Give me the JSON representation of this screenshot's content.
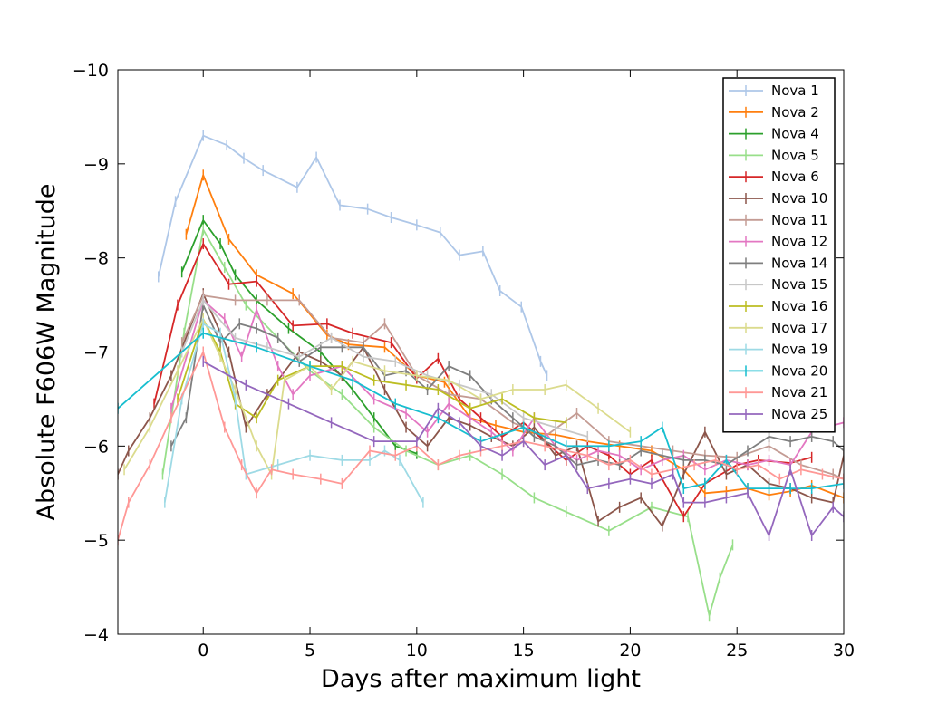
{
  "chart_data": {
    "type": "line",
    "title": "",
    "xlabel": "Days after maximum light",
    "ylabel": "Absolute F606W Magnitude",
    "xlim": [
      -4,
      30
    ],
    "ylim": [
      -10,
      -4
    ],
    "y_inverted": true,
    "grid": false,
    "legend_position": "top-right",
    "x_ticks": [
      0,
      5,
      10,
      15,
      20,
      25,
      30
    ],
    "x_tick_labels": [
      "0",
      "5",
      "10",
      "15",
      "20",
      "25",
      "30"
    ],
    "y_ticks": [
      -10,
      -9,
      -8,
      -7,
      -6,
      -5,
      -4
    ],
    "y_tick_labels": [
      "−10",
      "−9",
      "−8",
      "−7",
      "−6",
      "−5",
      "−4"
    ],
    "series": [
      {
        "name": "Nova 1",
        "color": "#aec7e8",
        "x": [
          -2.1,
          -1.3,
          0,
          1.1,
          1.9,
          2.8,
          4.4,
          5.3,
          6.4,
          7.7,
          8.8,
          10,
          11.1,
          12,
          13.1,
          13.9,
          14.9,
          15.8,
          16.1
        ],
        "y": [
          -7.8,
          -8.6,
          -9.3,
          -9.2,
          -9.06,
          -8.93,
          -8.75,
          -9.07,
          -8.56,
          -8.52,
          -8.43,
          -8.35,
          -8.27,
          -8.03,
          -8.07,
          -7.65,
          -7.48,
          -6.9,
          -6.75
        ]
      },
      {
        "name": "Nova 2",
        "color": "#ff7f0e",
        "x": [
          -0.8,
          0,
          1.2,
          2.5,
          4.2,
          5.8,
          6.8,
          8.5,
          10,
          11.3,
          12.5,
          13.7,
          15,
          16.5,
          18,
          19.5,
          21,
          22.5,
          23.5,
          24.5,
          25.5,
          26.5,
          27.5,
          28.5,
          30
        ],
        "y": [
          -8.25,
          -8.88,
          -8.2,
          -7.82,
          -7.62,
          -7.18,
          -7.08,
          -7.05,
          -6.75,
          -6.68,
          -6.3,
          -6.22,
          -6.15,
          -6.12,
          -6.05,
          -6.0,
          -5.95,
          -5.75,
          -5.5,
          -5.52,
          -5.55,
          -5.48,
          -5.52,
          -5.58,
          -5.45
        ]
      },
      {
        "name": "Nova 4",
        "color": "#2ca02c",
        "x": [
          -1,
          0,
          0.8,
          1.5,
          2.5,
          4,
          5.5,
          7,
          8,
          9,
          10
        ],
        "y": [
          -7.85,
          -8.4,
          -8.15,
          -7.82,
          -7.55,
          -7.25,
          -7.0,
          -6.6,
          -6.3,
          -6.0,
          -5.92
        ]
      },
      {
        "name": "Nova 5",
        "color": "#98df8a",
        "x": [
          -1.9,
          -0.9,
          0,
          1,
          2,
          3.5,
          5,
          6.5,
          8,
          9.5,
          11,
          12.5,
          14,
          15.5,
          17,
          19,
          21,
          22.7,
          23.7,
          24.2,
          24.8
        ],
        "y": [
          -5.7,
          -7.2,
          -8.3,
          -7.9,
          -7.5,
          -7.15,
          -6.8,
          -6.55,
          -6.2,
          -5.95,
          -5.8,
          -5.9,
          -5.7,
          -5.45,
          -5.3,
          -5.1,
          -5.35,
          -5.25,
          -4.2,
          -4.6,
          -4.95
        ]
      },
      {
        "name": "Nova 6",
        "color": "#d62728",
        "x": [
          -2.3,
          -1.2,
          0,
          1.2,
          2.5,
          4.2,
          5.8,
          7,
          8.8,
          10,
          11,
          12,
          13,
          14,
          15,
          16,
          17,
          18,
          19,
          20,
          21,
          22.5,
          23.5,
          25,
          26,
          27.5,
          28.5
        ],
        "y": [
          -6.45,
          -7.5,
          -8.15,
          -7.72,
          -7.75,
          -7.28,
          -7.3,
          -7.2,
          -7.1,
          -6.72,
          -6.93,
          -6.5,
          -6.3,
          -6.1,
          -6.25,
          -6.05,
          -5.85,
          -6.0,
          -5.9,
          -5.7,
          -5.85,
          -5.25,
          -5.6,
          -5.8,
          -5.85,
          -5.82,
          -5.88
        ]
      },
      {
        "name": "Nova 10",
        "color": "#8c564b",
        "x": [
          -4,
          -3.5,
          -2.5,
          -1.5,
          0,
          1.2,
          2,
          3,
          4.5,
          5.5,
          6.5,
          7.5,
          8.5,
          9.5,
          10.5,
          11.5,
          12.5,
          13.5,
          14.5,
          15.5,
          16.5,
          17.5,
          18.5,
          19.5,
          20.5,
          21.5,
          22.5,
          23.5,
          24.5,
          25.5,
          26.5,
          27.5,
          28.5,
          29.5,
          30
        ],
        "y": [
          -5.7,
          -5.95,
          -6.3,
          -6.75,
          -7.62,
          -7.0,
          -6.2,
          -6.55,
          -7.0,
          -6.9,
          -6.75,
          -7.05,
          -6.6,
          -6.2,
          -6.0,
          -6.3,
          -6.22,
          -6.1,
          -6.0,
          -6.2,
          -5.9,
          -6.0,
          -5.2,
          -5.35,
          -5.45,
          -5.15,
          -5.7,
          -6.15,
          -5.7,
          -5.8,
          -5.6,
          -5.55,
          -5.45,
          -5.4,
          -5.9
        ]
      },
      {
        "name": "Nova 11",
        "color": "#c49c94",
        "x": [
          -1,
          0,
          1.5,
          3,
          4.5,
          6,
          7.5,
          8.5,
          10,
          11.5,
          13,
          14.5,
          16,
          17.5,
          19,
          20.5,
          22,
          23.5,
          25,
          26.5,
          28,
          29.5,
          30
        ],
        "y": [
          -7.1,
          -7.6,
          -7.55,
          -7.55,
          -7.55,
          -7.15,
          -7.1,
          -7.3,
          -6.75,
          -6.55,
          -6.5,
          -6.25,
          -6.1,
          -6.35,
          -6.05,
          -6.0,
          -5.95,
          -5.9,
          -5.88,
          -6.0,
          -5.8,
          -5.7,
          -5.65
        ]
      },
      {
        "name": "Nova 12",
        "color": "#e377c2",
        "x": [
          -1.5,
          0,
          1,
          1.8,
          2.5,
          3.5,
          4.2,
          5,
          6.5,
          8,
          9.5,
          10.5,
          11.5,
          12.5,
          13.5,
          14.5,
          15.5,
          16.5,
          17.5,
          18.5,
          19.5,
          20.5,
          21.5,
          22.5,
          23.5,
          24.5,
          25.5,
          26.5,
          27.5,
          28.5,
          29.5,
          30
        ],
        "y": [
          -6.4,
          -7.55,
          -7.35,
          -6.95,
          -7.45,
          -6.85,
          -6.55,
          -6.75,
          -6.85,
          -6.5,
          -6.35,
          -6.15,
          -6.45,
          -6.3,
          -6.15,
          -5.95,
          -6.3,
          -6.0,
          -5.85,
          -5.95,
          -5.9,
          -5.75,
          -5.85,
          -5.9,
          -5.75,
          -5.85,
          -5.8,
          -5.85,
          -5.8,
          -6.15,
          -6.22,
          -6.25
        ]
      },
      {
        "name": "Nova 14",
        "color": "#7f7f7f",
        "x": [
          -1.5,
          -0.8,
          0,
          0.8,
          1.7,
          2.5,
          3.5,
          4.5,
          5.5,
          6.5,
          7.5,
          8.5,
          9.5,
          10.5,
          11.5,
          12.5,
          13.5,
          14.5,
          15.5,
          16.5,
          17.5,
          18.5,
          19.5,
          20.5,
          21.5,
          22.5,
          23.5,
          24.5,
          25.5,
          26.5,
          27.5,
          28.5,
          29.5,
          30
        ],
        "y": [
          -6.0,
          -6.3,
          -7.5,
          -7.1,
          -7.3,
          -7.25,
          -7.15,
          -6.9,
          -7.05,
          -7.05,
          -7.05,
          -6.75,
          -6.8,
          -6.6,
          -6.85,
          -6.75,
          -6.5,
          -6.3,
          -6.1,
          -6.0,
          -5.8,
          -5.85,
          -5.8,
          -5.95,
          -5.9,
          -5.85,
          -5.85,
          -5.8,
          -5.95,
          -6.1,
          -6.05,
          -6.1,
          -6.05,
          -5.95
        ]
      },
      {
        "name": "Nova 15",
        "color": "#c7c7c7",
        "x": [
          -1,
          0,
          1.5,
          3,
          4.5,
          6,
          7.5,
          9,
          10.5,
          12,
          13.5,
          15,
          16.5,
          18
        ],
        "y": [
          -7.0,
          -7.55,
          -7.15,
          -7.05,
          -6.95,
          -7.15,
          -6.95,
          -6.9,
          -6.75,
          -6.65,
          -6.55,
          -6.3,
          -6.2,
          -6.1
        ]
      },
      {
        "name": "Nova 16",
        "color": "#bcbd22",
        "x": [
          -1.2,
          0,
          0.8,
          1.5,
          2.5,
          3.5,
          5,
          6.5,
          8,
          9.5,
          11,
          12.5,
          14,
          15.5,
          17
        ],
        "y": [
          -6.5,
          -7.35,
          -7.0,
          -6.45,
          -6.3,
          -6.7,
          -6.85,
          -6.85,
          -6.7,
          -6.65,
          -6.6,
          -6.4,
          -6.5,
          -6.3,
          -6.25
        ]
      },
      {
        "name": "Nova 17",
        "color": "#dbdb8d",
        "x": [
          -3.7,
          -2.5,
          -1.2,
          0,
          0.8,
          1.5,
          2.5,
          3.2,
          3.8,
          5,
          6,
          7,
          8.5,
          10,
          11.5,
          13,
          14.5,
          16,
          17,
          18.5,
          20
        ],
        "y": [
          -5.75,
          -6.2,
          -6.8,
          -7.35,
          -6.95,
          -6.6,
          -6.0,
          -5.7,
          -6.7,
          -6.85,
          -6.6,
          -6.9,
          -6.8,
          -6.75,
          -6.7,
          -6.5,
          -6.6,
          -6.6,
          -6.65,
          -6.4,
          -6.15
        ]
      },
      {
        "name": "Nova 19",
        "color": "#9edae5",
        "x": [
          -1.8,
          -1,
          0,
          0.8,
          1.5,
          2,
          3.5,
          5,
          6.5,
          7.8,
          8.5,
          9.2,
          10.3
        ],
        "y": [
          -5.4,
          -6.5,
          -7.3,
          -7.2,
          -6.5,
          -5.7,
          -5.8,
          -5.9,
          -5.85,
          -5.85,
          -5.95,
          -5.85,
          -5.4
        ]
      },
      {
        "name": "Nova 20",
        "color": "#17becf",
        "x": [
          -4,
          0,
          2.5,
          5,
          7,
          9,
          11,
          13,
          15,
          17,
          19,
          20.5,
          21.5,
          22.5,
          23.5,
          24.5,
          25.5,
          26.5,
          27.5,
          28.5,
          30
        ],
        "y": [
          -6.4,
          -7.2,
          -7.05,
          -6.85,
          -6.7,
          -6.45,
          -6.3,
          -6.05,
          -6.2,
          -6.0,
          -6.0,
          -6.05,
          -6.2,
          -5.55,
          -5.6,
          -5.85,
          -5.55,
          -5.55,
          -5.55,
          -5.55,
          -5.6
        ]
      },
      {
        "name": "Nova 21",
        "color": "#ff9896",
        "x": [
          -4,
          -3.5,
          -2.5,
          -1.5,
          0,
          1,
          1.8,
          2.5,
          3.2,
          4.2,
          5.5,
          6.5,
          7.8,
          9,
          10,
          11,
          12,
          13,
          14,
          15,
          16,
          17,
          18,
          19,
          20,
          21,
          22,
          23,
          24,
          25,
          26,
          27,
          28,
          29,
          30
        ],
        "y": [
          -5.0,
          -5.4,
          -5.8,
          -6.3,
          -7.0,
          -6.2,
          -5.8,
          -5.5,
          -5.75,
          -5.7,
          -5.65,
          -5.6,
          -5.95,
          -5.9,
          -6.0,
          -5.8,
          -5.9,
          -5.95,
          -6.0,
          -6.05,
          -6.0,
          -5.95,
          -5.9,
          -5.8,
          -5.85,
          -5.7,
          -5.75,
          -5.8,
          -5.85,
          -5.75,
          -5.8,
          -5.65,
          -5.75,
          -5.7,
          -5.65
        ]
      },
      {
        "name": "Nova 25",
        "color": "#9467bd",
        "x": [
          0,
          2,
          4,
          6,
          8,
          10,
          11,
          12,
          13,
          14,
          15,
          16,
          17,
          18,
          19,
          20,
          21,
          22,
          22.5,
          23.5,
          24.5,
          25.5,
          26.5,
          27.5,
          28.5,
          29.5,
          30
        ],
        "y": [
          -6.9,
          -6.65,
          -6.45,
          -6.25,
          -6.05,
          -6.05,
          -6.4,
          -6.25,
          -6.0,
          -5.9,
          -6.05,
          -5.8,
          -5.9,
          -5.55,
          -5.6,
          -5.65,
          -5.6,
          -5.7,
          -5.4,
          -5.4,
          -5.45,
          -5.5,
          -5.05,
          -5.75,
          -5.05,
          -5.35,
          -5.25
        ]
      }
    ]
  }
}
